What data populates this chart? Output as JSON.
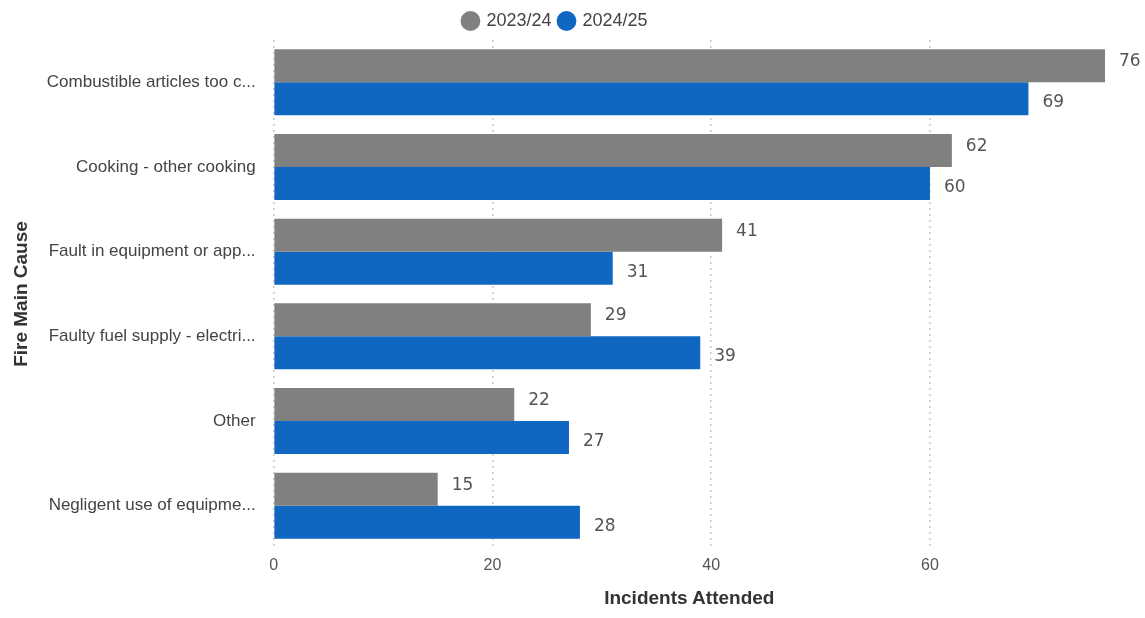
{
  "chart_data": {
    "type": "bar",
    "orientation": "horizontal",
    "xlabel": "Incidents Attended",
    "ylabel": "Fire Main Cause",
    "categories": [
      "Combustible articles too c...",
      "Cooking - other cooking",
      "Fault in equipment or app...",
      "Faulty fuel supply - electri...",
      "Other",
      "Negligent use of equipme..."
    ],
    "series": [
      {
        "name": "2023/24",
        "color": "#808080",
        "values": [
          76,
          62,
          41,
          29,
          22,
          15
        ]
      },
      {
        "name": "2024/25",
        "color": "#0f67c2",
        "values": [
          69,
          60,
          31,
          39,
          27,
          28
        ]
      }
    ],
    "xlim": [
      0,
      76
    ],
    "xticks": [
      0,
      20,
      40,
      60
    ],
    "grid": "x",
    "legend": "top",
    "data_labels": true
  }
}
